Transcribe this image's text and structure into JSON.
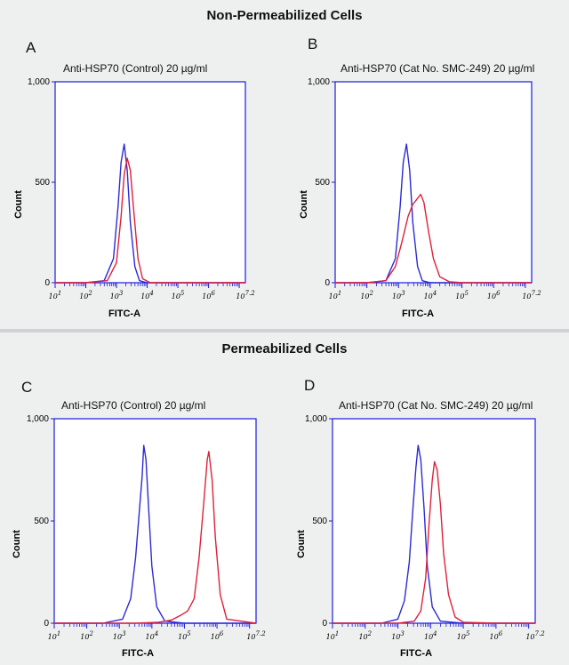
{
  "sections": {
    "top_title": "Non-Permeabilized Cells",
    "bottom_title": "Permeabilized Cells"
  },
  "panels": [
    {
      "letter": "A",
      "caption": "Anti-HSP70 (Control) 20 µg/ml"
    },
    {
      "letter": "B",
      "caption": "Anti-HSP70 (Cat No. SMC-249) 20 µg/ml"
    },
    {
      "letter": "C",
      "caption": "Anti-HSP70 (Control) 20 µg/ml"
    },
    {
      "letter": "D",
      "caption": "Anti-HSP70 (Cat No. SMC-249) 20 µg/ml"
    }
  ],
  "colors": {
    "series1": "#2b2bd6",
    "series2": "#e0203a",
    "frame": "#1a1ae0"
  },
  "chart_data": [
    {
      "type": "line",
      "panel": "A",
      "xlabel": "FITC-A",
      "ylabel": "Count",
      "xscale": "log10",
      "xlim": [
        1,
        7.2
      ],
      "ylim": [
        0,
        1000
      ],
      "xtick_labels": [
        "10^1",
        "10^2",
        "10^3",
        "10^4",
        "10^5",
        "10^6",
        "10^7.2"
      ],
      "ytick_labels": [
        "0",
        "500",
        "1,000"
      ],
      "series": [
        {
          "x": [
            1.0,
            2.0,
            2.6,
            2.9,
            3.05,
            3.15,
            3.25,
            3.35,
            3.45,
            3.6,
            3.75,
            4.0,
            5.0,
            6.0,
            7.2
          ],
          "y": [
            0,
            0,
            10,
            120,
            380,
            600,
            690,
            560,
            300,
            80,
            10,
            0,
            0,
            0,
            0
          ]
        },
        {
          "x": [
            1.0,
            2.0,
            2.7,
            3.0,
            3.15,
            3.25,
            3.35,
            3.45,
            3.55,
            3.7,
            3.85,
            4.1,
            5.0,
            6.0,
            7.2
          ],
          "y": [
            0,
            0,
            10,
            100,
            330,
            540,
            620,
            560,
            380,
            120,
            20,
            0,
            0,
            0,
            0
          ]
        }
      ]
    },
    {
      "type": "line",
      "panel": "B",
      "xlabel": "FITC-A",
      "ylabel": "Count",
      "xscale": "log10",
      "xlim": [
        1,
        7.2
      ],
      "ylim": [
        0,
        1000
      ],
      "xtick_labels": [
        "10^1",
        "10^2",
        "10^3",
        "10^4",
        "10^5",
        "10^6",
        "10^7.2"
      ],
      "ytick_labels": [
        "0",
        "500",
        "1,000"
      ],
      "series": [
        {
          "x": [
            1.0,
            2.0,
            2.6,
            2.9,
            3.05,
            3.15,
            3.25,
            3.35,
            3.45,
            3.6,
            3.75,
            4.0,
            5.0,
            6.0,
            7.2
          ],
          "y": [
            0,
            0,
            10,
            120,
            380,
            600,
            690,
            560,
            300,
            80,
            10,
            0,
            0,
            0,
            0
          ]
        },
        {
          "x": [
            1.0,
            2.0,
            2.6,
            2.9,
            3.1,
            3.3,
            3.45,
            3.6,
            3.7,
            3.8,
            3.95,
            4.1,
            4.3,
            4.6,
            5.0,
            6.0,
            7.2
          ],
          "y": [
            0,
            0,
            10,
            80,
            200,
            330,
            390,
            420,
            440,
            400,
            250,
            120,
            30,
            5,
            0,
            0,
            0
          ]
        }
      ]
    },
    {
      "type": "line",
      "panel": "C",
      "xlabel": "FITC-A",
      "ylabel": "Count",
      "xscale": "log10",
      "xlim": [
        1,
        7.2
      ],
      "ylim": [
        0,
        1000
      ],
      "xtick_labels": [
        "10^1",
        "10^2",
        "10^3",
        "10^4",
        "10^5",
        "10^6",
        "10^7.2"
      ],
      "ytick_labels": [
        "0",
        "500",
        "1,000"
      ],
      "series": [
        {
          "x": [
            1.0,
            2.5,
            3.1,
            3.35,
            3.5,
            3.6,
            3.7,
            3.75,
            3.82,
            3.9,
            4.0,
            4.15,
            4.4,
            5.0,
            6.0,
            7.2
          ],
          "y": [
            0,
            0,
            20,
            120,
            320,
            520,
            720,
            870,
            800,
            560,
            280,
            80,
            10,
            0,
            0,
            0
          ]
        },
        {
          "x": [
            1.0,
            3.5,
            4.2,
            4.6,
            4.9,
            5.1,
            5.3,
            5.45,
            5.6,
            5.7,
            5.75,
            5.85,
            5.95,
            6.1,
            6.3,
            7.2
          ],
          "y": [
            0,
            0,
            5,
            15,
            40,
            60,
            120,
            320,
            600,
            800,
            840,
            700,
            420,
            140,
            20,
            0
          ]
        }
      ]
    },
    {
      "type": "line",
      "panel": "D",
      "xlabel": "FITC-A",
      "ylabel": "Count",
      "xscale": "log10",
      "xlim": [
        1,
        7.2
      ],
      "ylim": [
        0,
        1000
      ],
      "xtick_labels": [
        "10^1",
        "10^2",
        "10^3",
        "10^4",
        "10^5",
        "10^6",
        "10^7.2"
      ],
      "ytick_labels": [
        "0",
        "500",
        "1,000"
      ],
      "series": [
        {
          "x": [
            1.0,
            2.5,
            3.0,
            3.2,
            3.35,
            3.45,
            3.55,
            3.62,
            3.7,
            3.8,
            3.9,
            4.05,
            4.3,
            5.0,
            6.0,
            7.2
          ],
          "y": [
            0,
            0,
            20,
            110,
            300,
            540,
            760,
            870,
            800,
            560,
            280,
            80,
            10,
            0,
            0,
            0
          ]
        },
        {
          "x": [
            1.0,
            3.0,
            3.5,
            3.7,
            3.85,
            3.95,
            4.05,
            4.12,
            4.2,
            4.3,
            4.4,
            4.55,
            4.75,
            5.0,
            6.0,
            7.2
          ],
          "y": [
            0,
            0,
            10,
            60,
            220,
            480,
            700,
            790,
            750,
            580,
            340,
            140,
            30,
            5,
            0,
            0
          ]
        }
      ]
    }
  ]
}
